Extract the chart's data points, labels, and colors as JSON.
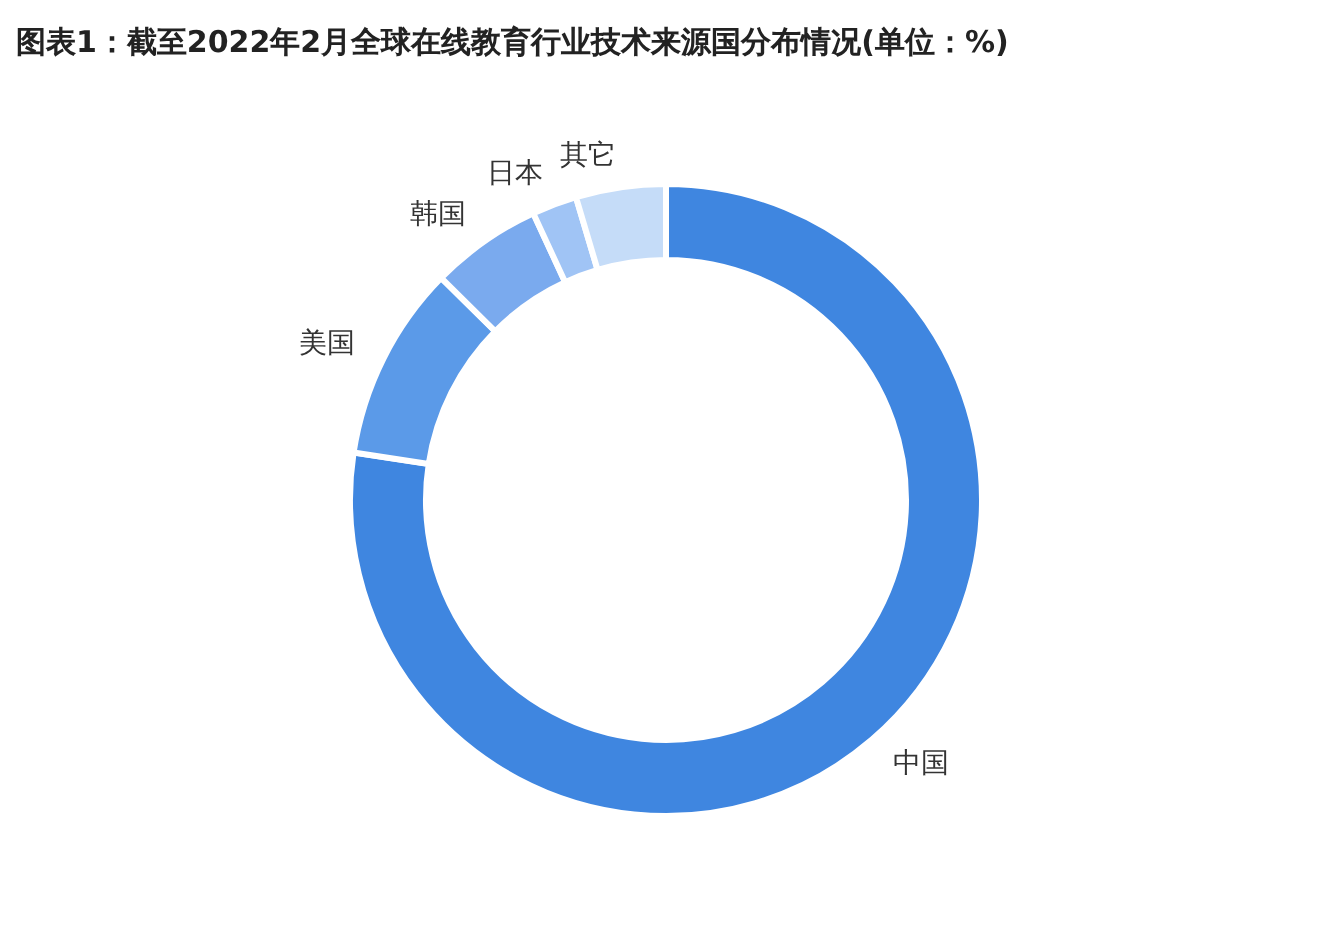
{
  "chart_data": {
    "type": "donut",
    "title": "图表1：截至2022年2月全球在线教育行业技术来源国分布情况(单位：%)",
    "categories": [
      "中国",
      "美国",
      "韩国",
      "日本",
      "其它"
    ],
    "values": [
      77.4,
      10,
      5.7,
      2.3,
      4.6
    ],
    "colors": [
      "#3f86e0",
      "#5b9ae8",
      "#7aaaee",
      "#a0c4f5",
      "#c5dcf8"
    ],
    "legend": false
  }
}
